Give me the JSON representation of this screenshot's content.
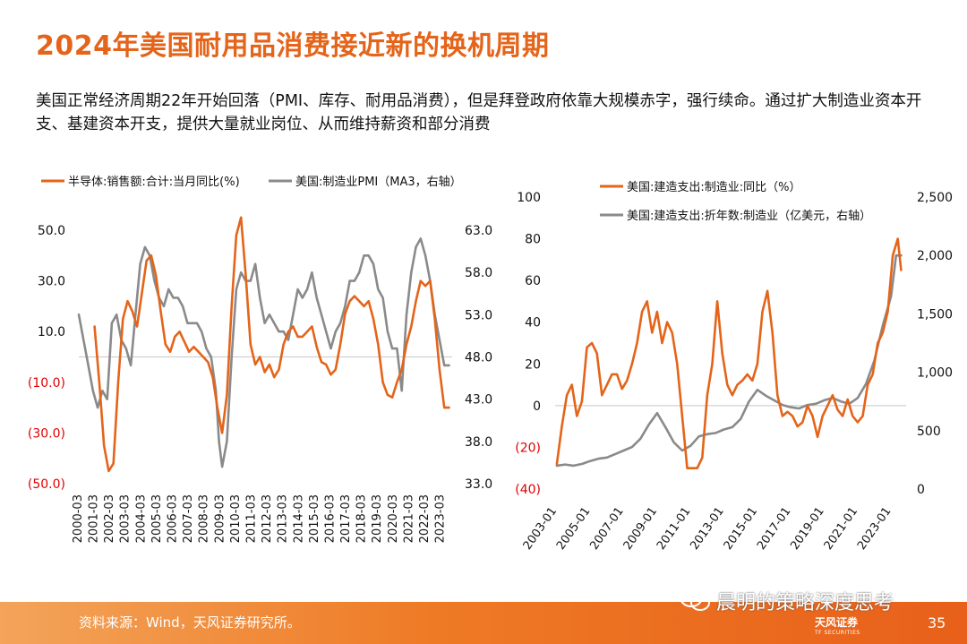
{
  "page": {
    "title": "2024年美国耐用品消费接近新的换机周期",
    "subtitle": "美国正常经济周期22年开始回落（PMI、库存、耐用品消费），但是拜登政府依靠大规模赤字，强行续命。通过扩大制造业资本开支、基建资本开支，提供大量就业岗位、从而维持薪资和部分消费",
    "source": "资料来源：Wind，天风证券研究所。",
    "watermark": "晨明的策略深度思考",
    "brand": "天风证券",
    "brand_en": "TF SECURITIES",
    "page_number": "35"
  },
  "colors": {
    "accent": "#e4641a",
    "series_orange": "#e4641a",
    "series_gray": "#8a8a8a",
    "negative_tick": "#e00000"
  },
  "chart_data": [
    {
      "type": "line",
      "title": "",
      "legend": [
        "半导体:销售额:合计:当月同比(%)",
        "美国:制造业PMI（MA3，右轴）"
      ],
      "legend_position": "top",
      "x_tick_labels": [
        "2000-03",
        "2001-03",
        "2002-03",
        "2003-03",
        "2004-03",
        "2005-03",
        "2006-03",
        "2007-03",
        "2008-03",
        "2009-03",
        "2010-03",
        "2011-03",
        "2012-03",
        "2013-03",
        "2014-03",
        "2015-03",
        "2016-03",
        "2017-03",
        "2018-03",
        "2019-03",
        "2020-03",
        "2021-03",
        "2022-03",
        "2023-03"
      ],
      "left_axis": {
        "ylim": [
          -50,
          50
        ],
        "ticks": [
          50,
          30,
          10,
          -10,
          -30,
          -50
        ],
        "tick_labels": [
          "50.0",
          "30.0",
          "10.0",
          "(10.0)",
          "(30.0)",
          "(50.0)"
        ]
      },
      "right_axis": {
        "ylim": [
          33,
          63
        ],
        "ticks": [
          63,
          58,
          53,
          48,
          43,
          38,
          33
        ],
        "tick_labels": [
          "63.0",
          "58.0",
          "53.0",
          "48.0",
          "43.0",
          "38.0",
          "33.0"
        ]
      },
      "grid": false,
      "series": [
        {
          "name": "半导体:销售额:合计:当月同比(%)",
          "axis": "left",
          "color": "#e4641a",
          "x": [
            2001.0,
            2001.3,
            2001.6,
            2001.9,
            2002.2,
            2002.5,
            2002.8,
            2003.1,
            2003.4,
            2003.7,
            2004.0,
            2004.3,
            2004.6,
            2004.9,
            2005.2,
            2005.5,
            2005.8,
            2006.1,
            2006.4,
            2006.7,
            2007.0,
            2007.3,
            2007.6,
            2007.9,
            2008.2,
            2008.5,
            2008.8,
            2009.1,
            2009.4,
            2009.7,
            2010.0,
            2010.3,
            2010.6,
            2010.9,
            2011.2,
            2011.5,
            2011.8,
            2012.1,
            2012.4,
            2012.7,
            2013.0,
            2013.3,
            2013.6,
            2013.9,
            2014.2,
            2014.5,
            2014.8,
            2015.1,
            2015.4,
            2015.7,
            2016.0,
            2016.3,
            2016.6,
            2016.9,
            2017.2,
            2017.5,
            2017.8,
            2018.1,
            2018.4,
            2018.7,
            2019.0,
            2019.3,
            2019.6,
            2019.9,
            2020.2,
            2020.5,
            2020.8,
            2021.1,
            2021.4,
            2021.7,
            2022.0,
            2022.3,
            2022.6,
            2022.9,
            2023.2,
            2023.5
          ],
          "values": [
            12,
            -10,
            -35,
            -45,
            -42,
            -10,
            15,
            22,
            18,
            12,
            25,
            38,
            40,
            32,
            18,
            5,
            2,
            8,
            10,
            6,
            2,
            4,
            2,
            0,
            -2,
            -8,
            -20,
            -30,
            -15,
            20,
            48,
            55,
            32,
            5,
            -3,
            0,
            -6,
            -3,
            -8,
            -5,
            5,
            10,
            12,
            8,
            8,
            10,
            12,
            4,
            -2,
            -3,
            -7,
            -5,
            5,
            17,
            22,
            24,
            22,
            20,
            22,
            15,
            5,
            -10,
            -15,
            -16,
            -10,
            -5,
            5,
            12,
            22,
            30,
            28,
            30,
            15,
            -5,
            -20,
            -20
          ]
        },
        {
          "name": "美国:制造业PMI（MA3，右轴）",
          "axis": "right",
          "color": "#8a8a8a",
          "x": [
            2000.0,
            2000.3,
            2000.6,
            2000.9,
            2001.2,
            2001.5,
            2001.8,
            2002.1,
            2002.4,
            2002.7,
            2003.0,
            2003.3,
            2003.6,
            2003.9,
            2004.2,
            2004.5,
            2004.8,
            2005.1,
            2005.4,
            2005.7,
            2006.0,
            2006.3,
            2006.6,
            2006.9,
            2007.2,
            2007.5,
            2007.8,
            2008.1,
            2008.4,
            2008.7,
            2008.9,
            2009.1,
            2009.4,
            2009.7,
            2010.0,
            2010.3,
            2010.6,
            2010.9,
            2011.2,
            2011.5,
            2011.8,
            2012.1,
            2012.4,
            2012.7,
            2013.0,
            2013.3,
            2013.6,
            2013.9,
            2014.2,
            2014.5,
            2014.8,
            2015.1,
            2015.4,
            2015.7,
            2016.0,
            2016.3,
            2016.6,
            2016.9,
            2017.2,
            2017.5,
            2017.8,
            2018.1,
            2018.4,
            2018.7,
            2019.0,
            2019.3,
            2019.6,
            2019.9,
            2020.2,
            2020.5,
            2020.8,
            2021.1,
            2021.4,
            2021.7,
            2022.0,
            2022.3,
            2022.6,
            2022.9,
            2023.2,
            2023.5
          ],
          "values": [
            53,
            50,
            47,
            44,
            42,
            44,
            43,
            52,
            53,
            50,
            49,
            47,
            53,
            59,
            61,
            60,
            57,
            55,
            54,
            56,
            55,
            55,
            54,
            52,
            52,
            52,
            51,
            49,
            48,
            44,
            38,
            35,
            38,
            48,
            56,
            58,
            57,
            57,
            59,
            55,
            52,
            53,
            52,
            51,
            51,
            50,
            53,
            56,
            55,
            56,
            58,
            55,
            53,
            51,
            49,
            51,
            52,
            54,
            57,
            57,
            58,
            60,
            60,
            59,
            56,
            55,
            51,
            49,
            49,
            44,
            53,
            58,
            61,
            62,
            60,
            57,
            53,
            50,
            47,
            47
          ]
        }
      ]
    },
    {
      "type": "line",
      "title": "",
      "legend": [
        "美国:建造支出:制造业:同比（%）",
        "美国:建造支出:折年数:制造业（亿美元，右轴）"
      ],
      "legend_position": "top",
      "x_tick_labels": [
        "2003-01",
        "2005-01",
        "2007-01",
        "2009-01",
        "2011-01",
        "2013-01",
        "2015-01",
        "2017-01",
        "2019-01",
        "2021-01",
        "2023-01"
      ],
      "left_axis": {
        "ylim": [
          -40,
          100
        ],
        "ticks": [
          100,
          80,
          60,
          40,
          20,
          0,
          -20,
          -40
        ],
        "tick_labels": [
          "100",
          "80",
          "60",
          "40",
          "20",
          "0",
          "(20)",
          "(40)"
        ]
      },
      "right_axis": {
        "ylim": [
          0,
          2500
        ],
        "ticks": [
          2500,
          2000,
          1500,
          1000,
          500,
          0
        ],
        "tick_labels": [
          "2,500",
          "2,000",
          "1,500",
          "1,000",
          "500",
          "0"
        ]
      },
      "grid": false,
      "series": [
        {
          "name": "美国:建造支出:制造业:同比（%）",
          "axis": "left",
          "color": "#e4641a",
          "x": [
            2003.0,
            2003.3,
            2003.6,
            2003.9,
            2004.2,
            2004.5,
            2004.8,
            2005.1,
            2005.4,
            2005.7,
            2006.0,
            2006.3,
            2006.6,
            2006.9,
            2007.2,
            2007.5,
            2007.8,
            2008.1,
            2008.4,
            2008.7,
            2009.0,
            2009.3,
            2009.6,
            2009.9,
            2010.2,
            2010.5,
            2010.8,
            2011.1,
            2011.4,
            2011.7,
            2012.0,
            2012.3,
            2012.6,
            2012.9,
            2013.2,
            2013.5,
            2013.8,
            2014.1,
            2014.4,
            2014.7,
            2015.0,
            2015.3,
            2015.6,
            2015.9,
            2016.2,
            2016.5,
            2016.8,
            2017.1,
            2017.4,
            2017.7,
            2018.0,
            2018.3,
            2018.6,
            2018.9,
            2019.2,
            2019.5,
            2019.8,
            2020.1,
            2020.4,
            2020.7,
            2021.0,
            2021.3,
            2021.6,
            2021.9,
            2022.2,
            2022.5,
            2022.8,
            2023.1,
            2023.4,
            2023.6
          ],
          "values": [
            -28,
            -10,
            5,
            10,
            -5,
            2,
            28,
            30,
            25,
            5,
            10,
            15,
            15,
            8,
            12,
            20,
            30,
            45,
            50,
            35,
            45,
            30,
            40,
            35,
            20,
            -5,
            -30,
            -30,
            -30,
            -25,
            5,
            20,
            50,
            25,
            10,
            5,
            10,
            12,
            15,
            12,
            20,
            45,
            55,
            35,
            5,
            -5,
            -3,
            -5,
            -10,
            -8,
            0,
            -5,
            -15,
            -5,
            0,
            5,
            -2,
            -5,
            3,
            -5,
            -8,
            -5,
            10,
            15,
            30,
            35,
            45,
            72,
            80,
            65
          ]
        },
        {
          "name": "美国:建造支出:折年数:制造业（亿美元，右轴）",
          "axis": "right",
          "color": "#8a8a8a",
          "x": [
            2003.0,
            2003.5,
            2004.0,
            2004.5,
            2005.0,
            2005.5,
            2006.0,
            2006.5,
            2007.0,
            2007.5,
            2008.0,
            2008.5,
            2009.0,
            2009.5,
            2010.0,
            2010.5,
            2011.0,
            2011.5,
            2012.0,
            2012.5,
            2013.0,
            2013.5,
            2014.0,
            2014.5,
            2015.0,
            2015.5,
            2016.0,
            2016.5,
            2017.0,
            2017.5,
            2018.0,
            2018.5,
            2019.0,
            2019.5,
            2020.0,
            2020.5,
            2021.0,
            2021.5,
            2022.0,
            2022.5,
            2023.0,
            2023.3,
            2023.6
          ],
          "values": [
            200,
            210,
            200,
            215,
            240,
            260,
            270,
            300,
            330,
            360,
            430,
            550,
            650,
            530,
            400,
            330,
            370,
            450,
            470,
            480,
            510,
            530,
            600,
            750,
            850,
            800,
            760,
            720,
            700,
            690,
            720,
            730,
            760,
            780,
            750,
            730,
            780,
            900,
            1100,
            1400,
            1650,
            2000,
            2000
          ]
        }
      ]
    }
  ]
}
